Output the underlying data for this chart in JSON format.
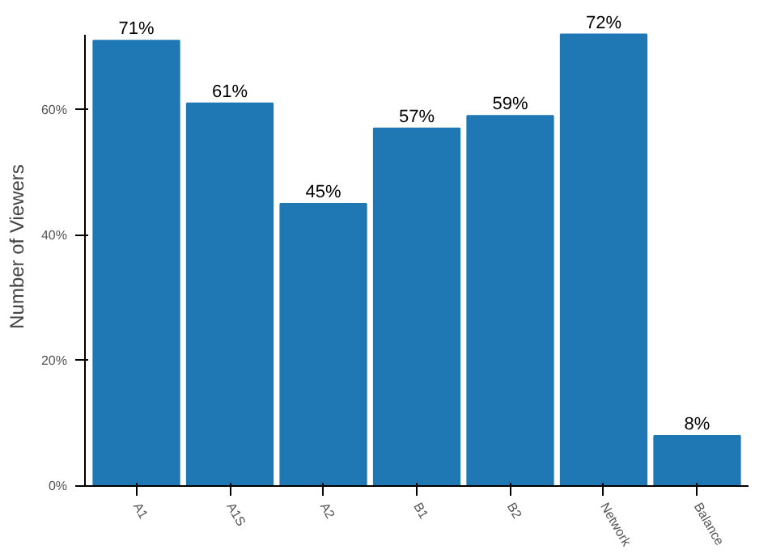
{
  "chart_data": {
    "type": "bar",
    "ylabel": "Number of Viewers",
    "categories": [
      "A1",
      "A1S",
      "A2",
      "B1",
      "B2",
      "Network",
      "Balance"
    ],
    "values": [
      71,
      61,
      45,
      57,
      59,
      72,
      8
    ],
    "value_labels": [
      "71%",
      "61%",
      "45%",
      "57%",
      "59%",
      "72%",
      "8%"
    ],
    "color": "#1f77b4",
    "ylim": [
      0,
      72
    ],
    "yticks": [
      {
        "value": 0,
        "label": "0%"
      },
      {
        "value": 20,
        "label": "20%"
      },
      {
        "value": 40,
        "label": "40%"
      },
      {
        "value": 60,
        "label": "60%"
      }
    ],
    "grid": false
  }
}
